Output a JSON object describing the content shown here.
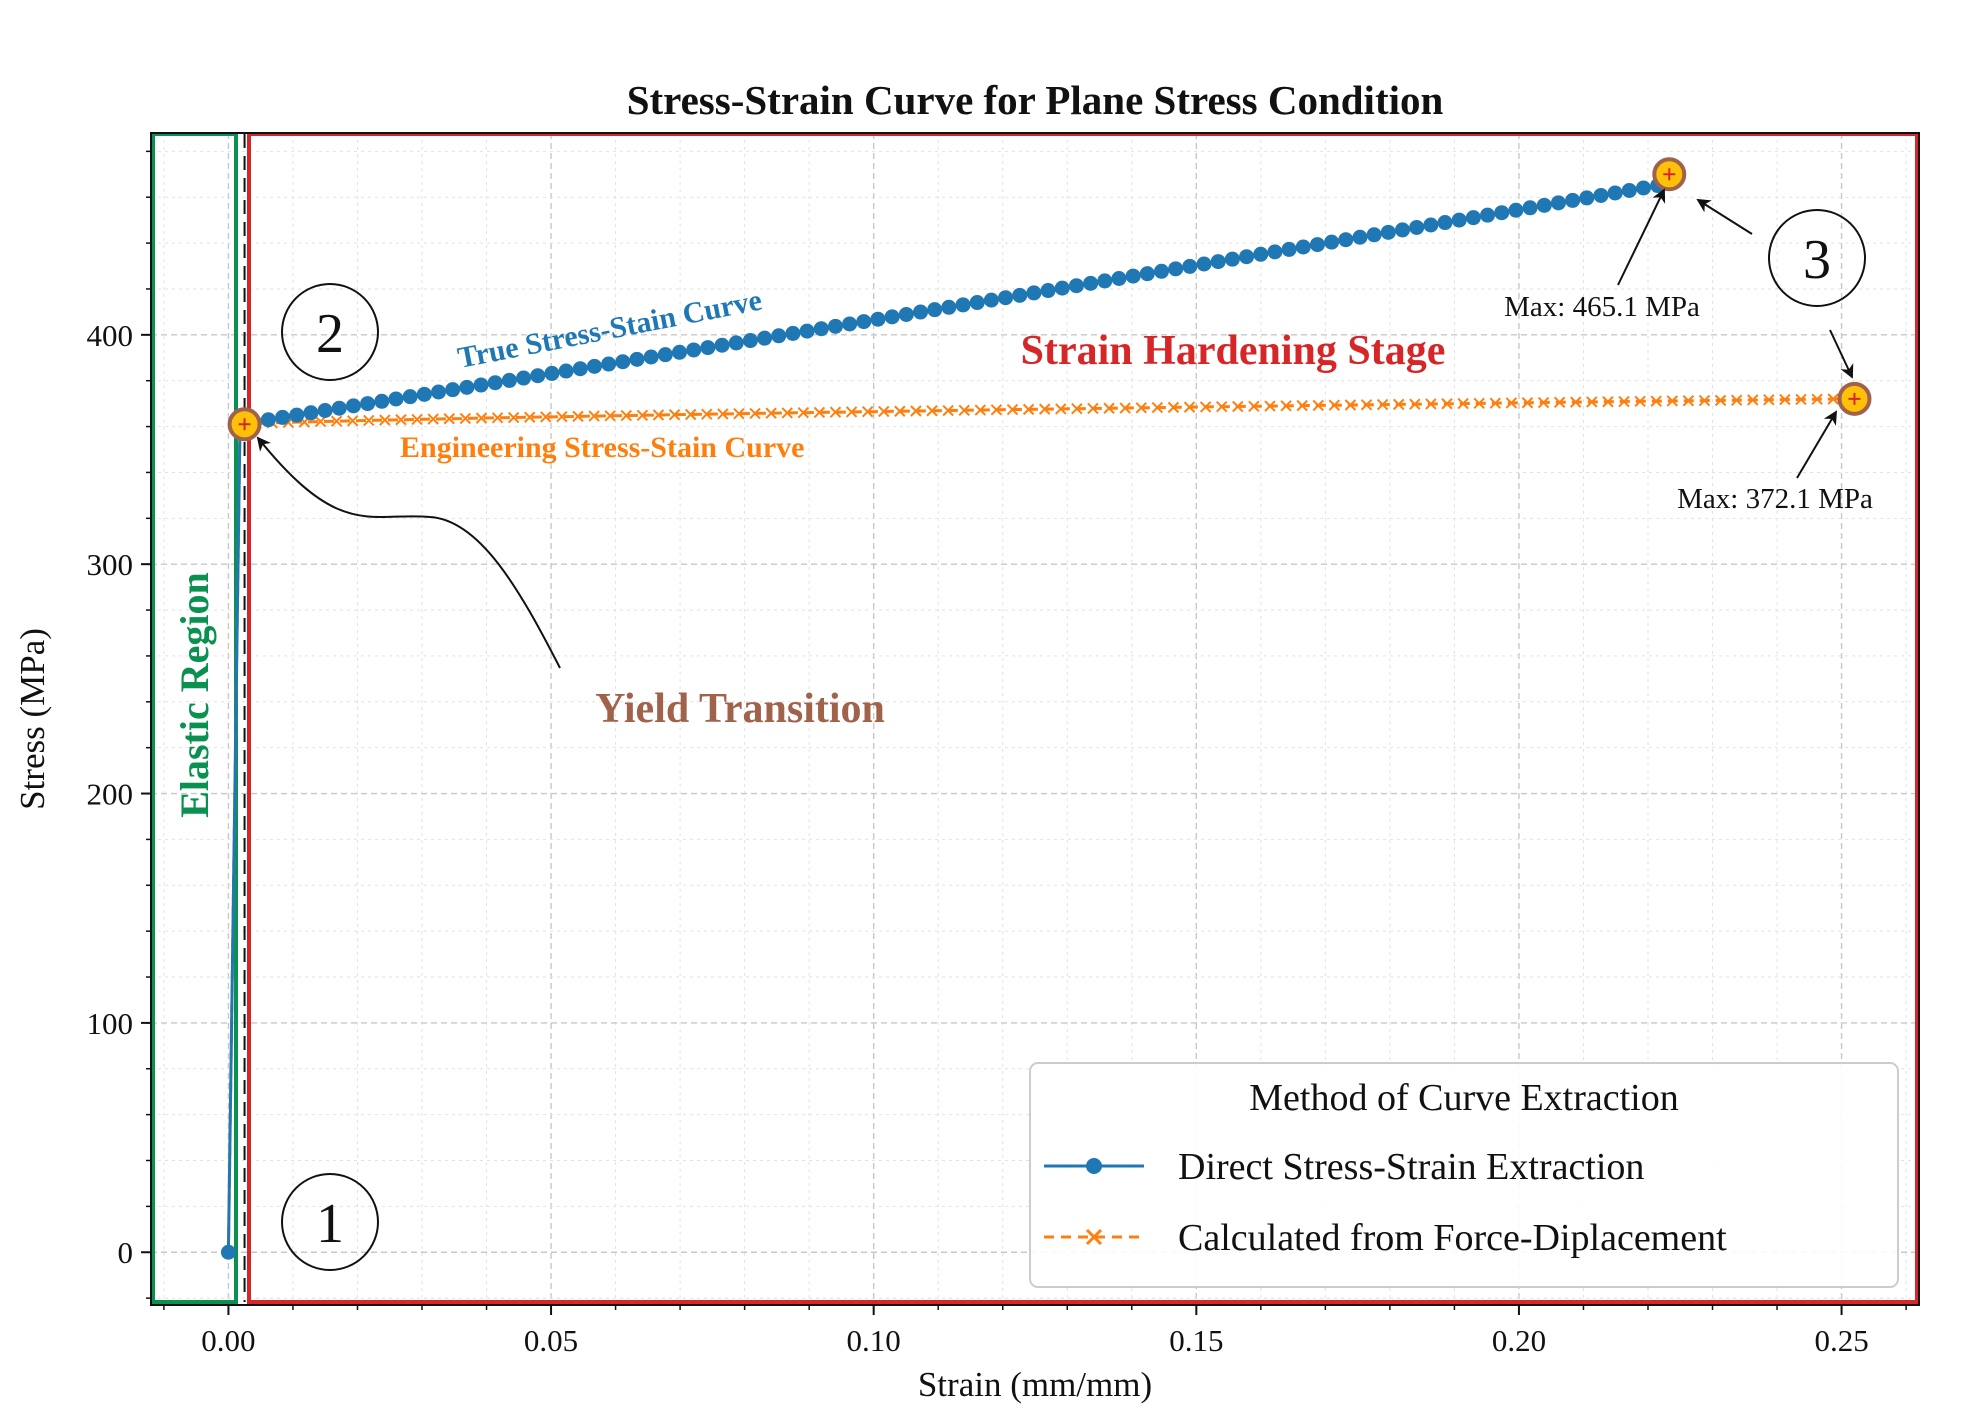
{
  "chart_data": {
    "type": "line",
    "title": "Stress-Strain Curve for Plane Stress Condition",
    "xlabel": "Strain (mm/mm)",
    "ylabel": "Stress (MPa)",
    "xlim": [
      -0.012,
      0.262
    ],
    "ylim": [
      -23,
      488
    ],
    "xticks": [
      0.0,
      0.05,
      0.1,
      0.15,
      0.2,
      0.25
    ],
    "xtick_labels": [
      "0.00",
      "0.05",
      "0.10",
      "0.15",
      "0.20",
      "0.25"
    ],
    "yticks": [
      0,
      100,
      200,
      300,
      400
    ],
    "ytick_labels": [
      "0",
      "100",
      "200",
      "300",
      "400"
    ],
    "grid": true,
    "legend": {
      "title": "Method of Curve Extraction",
      "position": "lower-right"
    },
    "series": [
      {
        "name": "Direct Stress-Strain Extraction",
        "color": "#1f77b4",
        "linestyle": "solid",
        "marker": "circle",
        "elastic": {
          "x": [
            0.0,
            0.0018
          ],
          "y": [
            0,
            361
          ]
        },
        "hardening": {
          "x_start": 0.0018,
          "x_end": 0.2215,
          "y_start": 361,
          "y_end": 465.1,
          "n_points": 100
        }
      },
      {
        "name": "Calculated from Force-Diplacement",
        "color": "#ff7f0e",
        "linestyle": "dashed",
        "marker": "x",
        "elastic": {
          "x": [
            0.0,
            0.0018
          ],
          "y": [
            0,
            361
          ]
        },
        "hardening": {
          "x_start": 0.0018,
          "x_end": 0.2512,
          "y_start": 361,
          "y_end": 372.1,
          "n_points": 100
        }
      }
    ],
    "key_points": [
      {
        "x": 0.0025,
        "y": 361
      },
      {
        "x": 0.2233,
        "y": 470,
        "label": "Max: 465.1 MPa"
      },
      {
        "x": 0.252,
        "y": 372.1,
        "label": "Max: 372.1 MPa"
      }
    ],
    "annotations": {
      "true_curve": "True Stress-Stain Curve",
      "eng_curve": "Engineering Stress-Stain Curve",
      "strain_hardening": "Strain Hardening Stage",
      "elastic_region": "Elastic Region",
      "yield_transition": "Yield Transition",
      "circle_1": "1",
      "circle_2": "2",
      "circle_3": "3"
    },
    "colors": {
      "elastic_box": "#0a9150",
      "hardening_box": "#d62728",
      "marker_fill": "#ffc107",
      "marker_edge": "#a0624a"
    }
  }
}
